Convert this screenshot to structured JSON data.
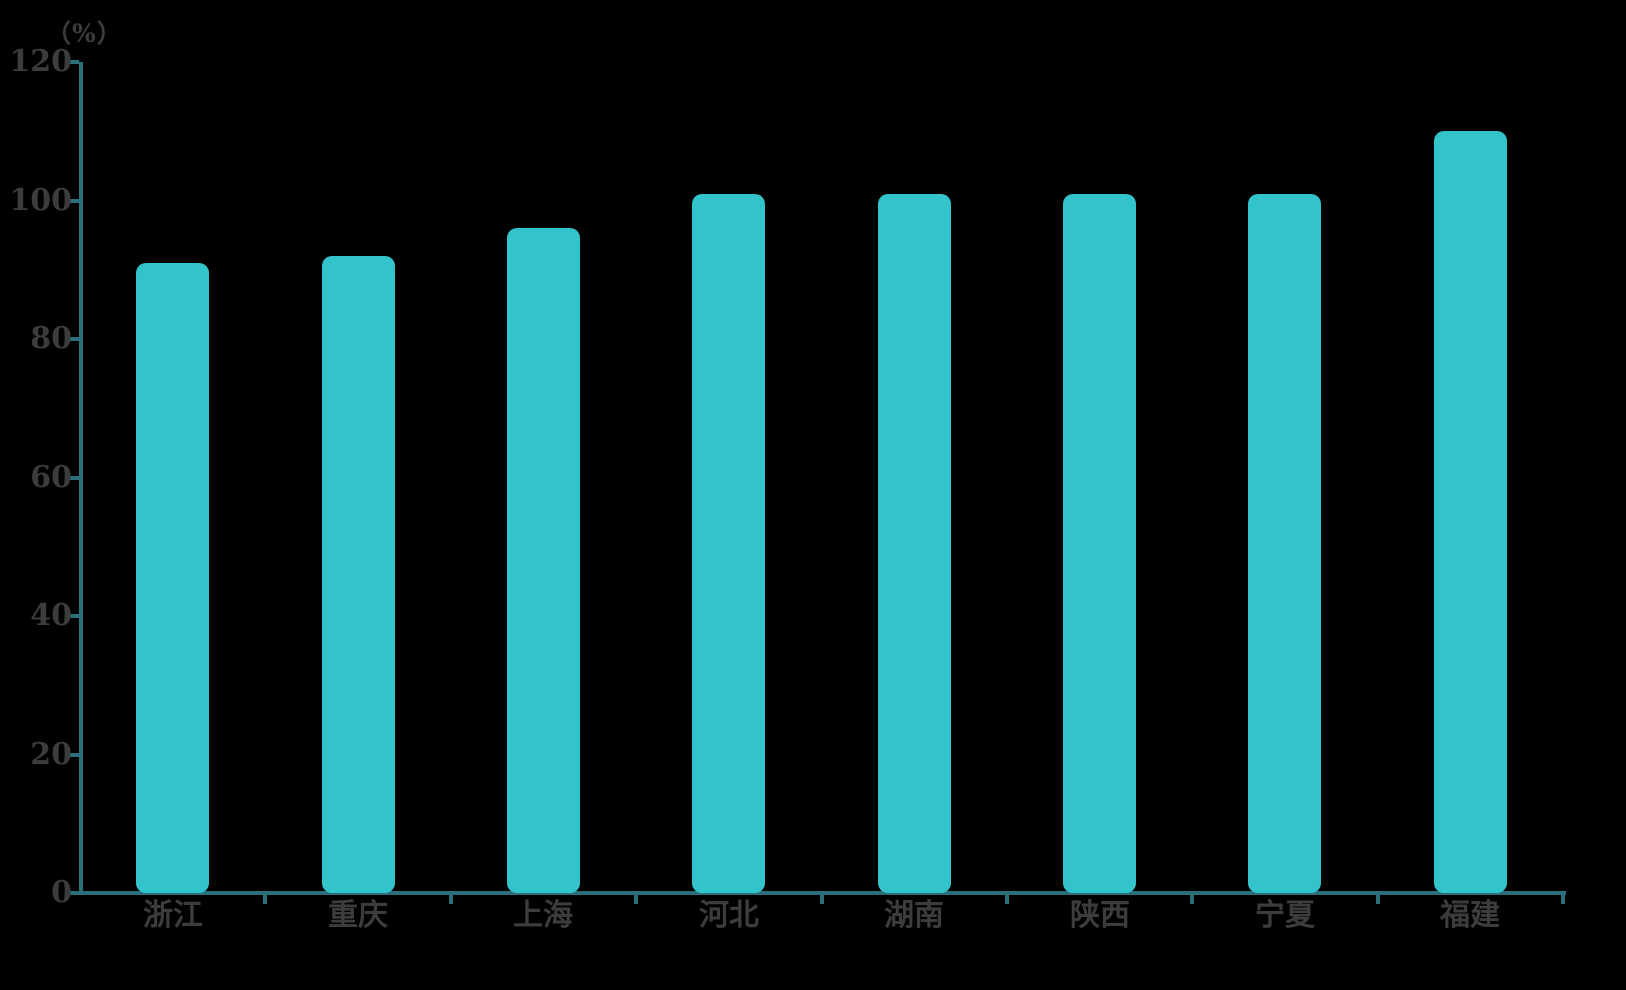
{
  "chart_data": {
    "type": "bar",
    "categories": [
      "浙江",
      "重庆",
      "上海",
      "河北",
      "湖南",
      "陕西",
      "宁夏",
      "福建"
    ],
    "values": [
      91,
      92,
      96,
      100.9,
      100.9,
      100.9,
      100.9,
      110
    ],
    "title": "",
    "xlabel": "",
    "ylabel": "（%）",
    "yticks": [
      0,
      20,
      40,
      60,
      80,
      100,
      120
    ],
    "ylim": [
      0,
      120
    ],
    "grid": false,
    "legend": "none",
    "bar_color": "#33C4CB",
    "axis_color": "#2B6F7A",
    "text_color": "#3C3C3C",
    "background_color": "#000000"
  }
}
